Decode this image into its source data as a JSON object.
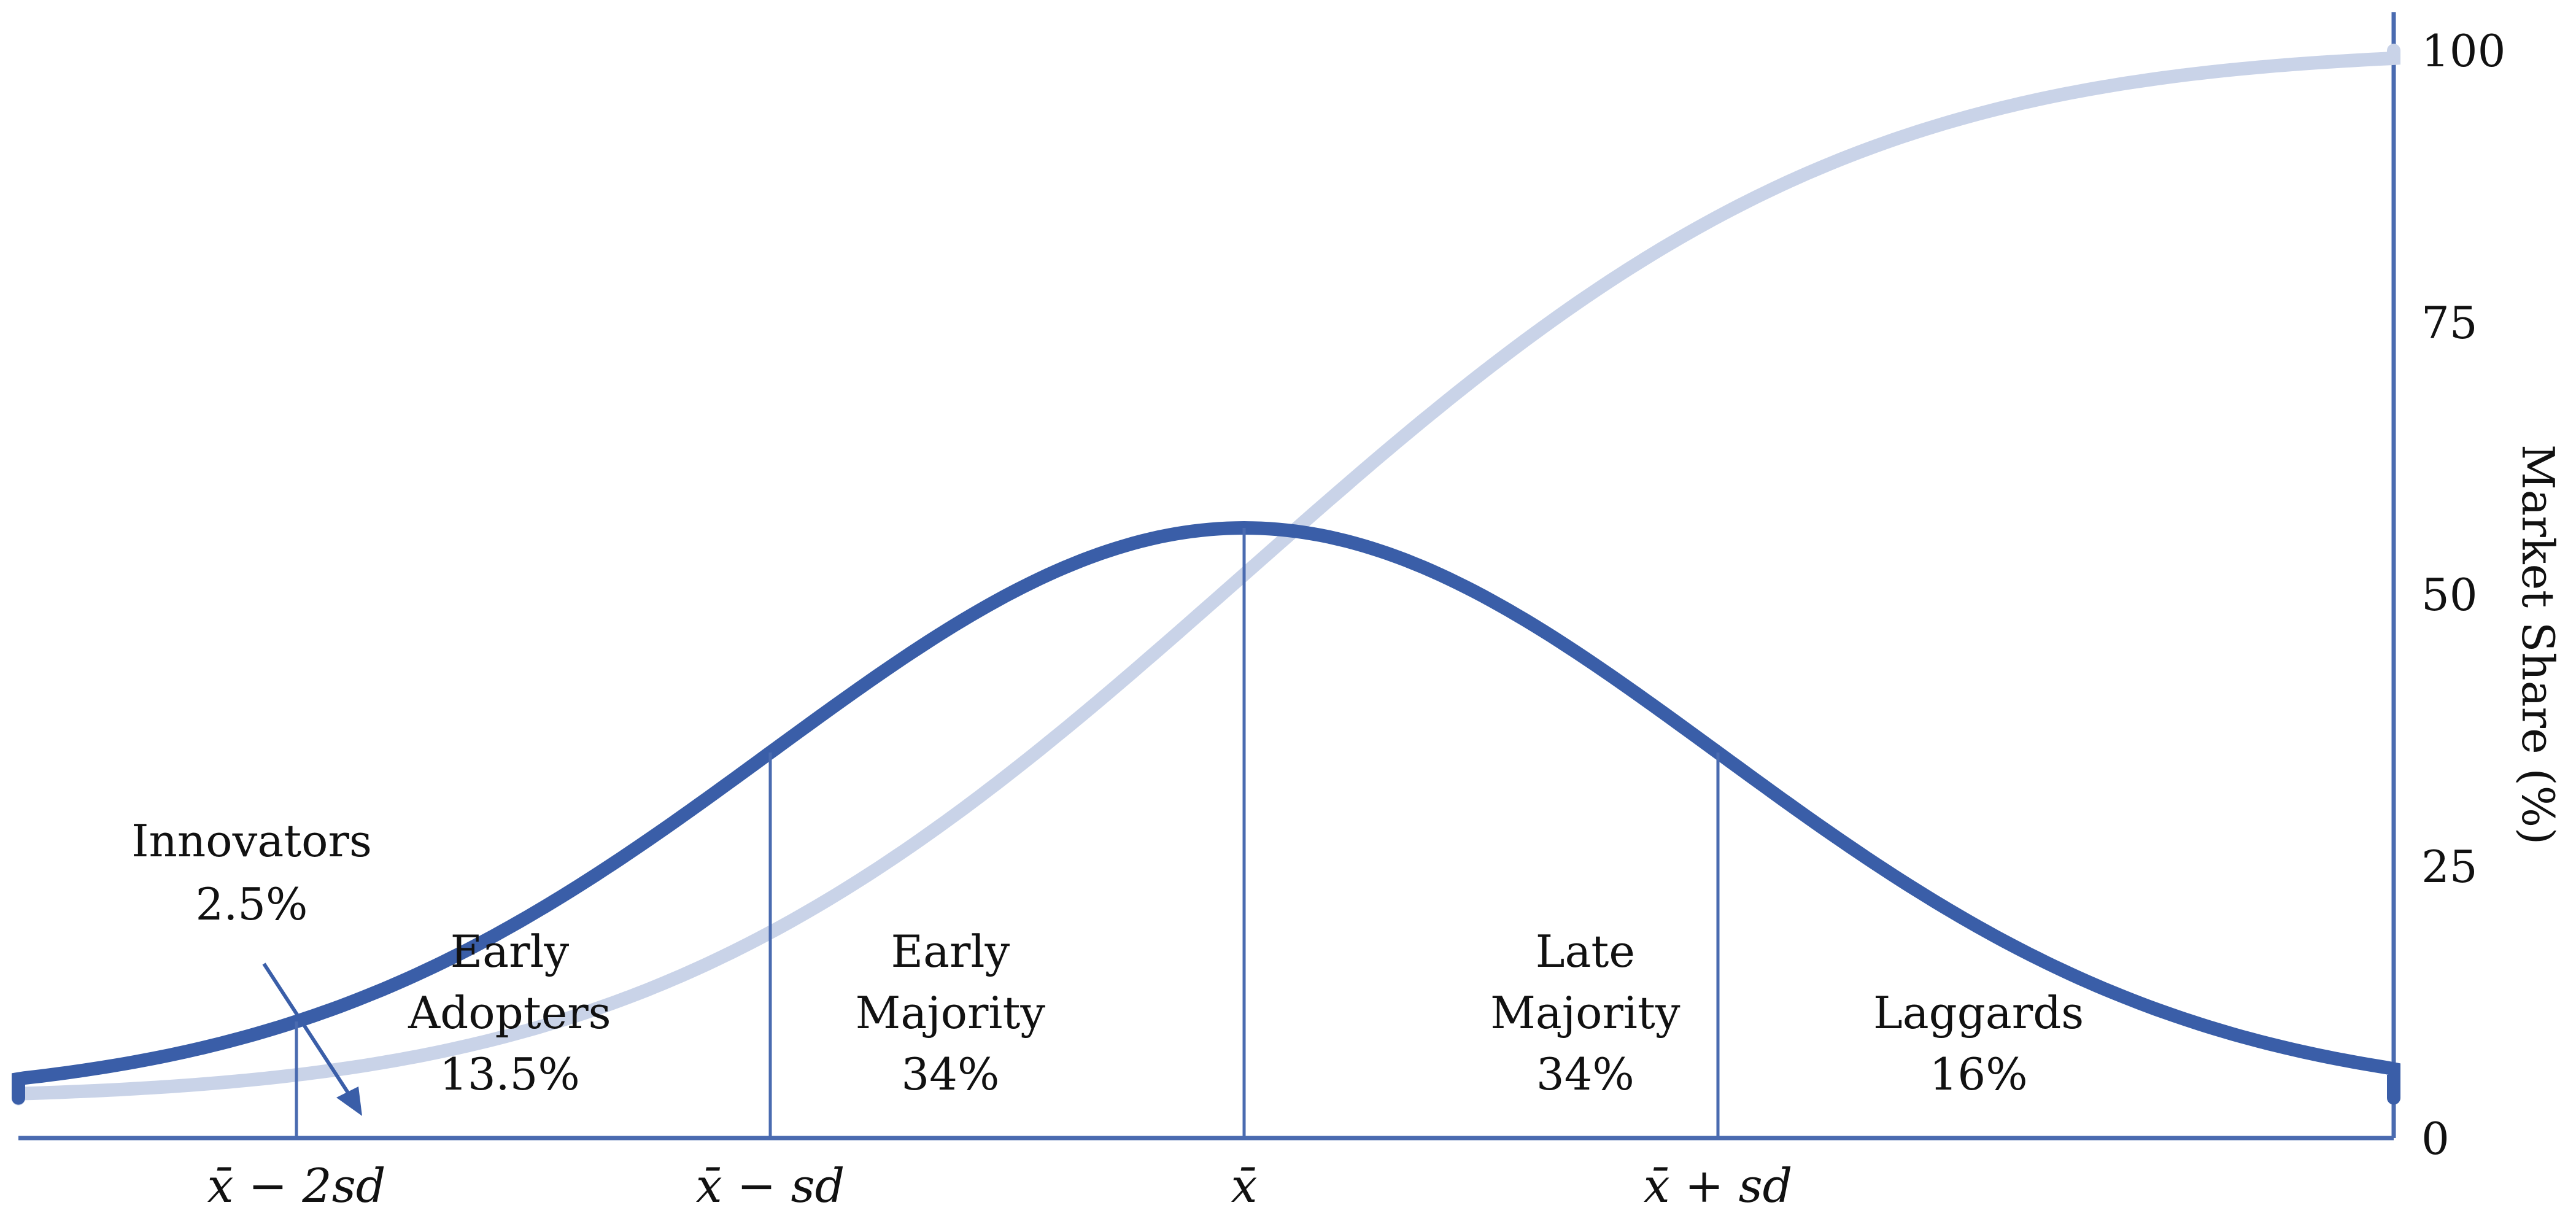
{
  "chart_data": {
    "type": "line",
    "ylabel": "Market Share (%)",
    "ylim": [
      0,
      100
    ],
    "y_ticks": [
      "0",
      "25",
      "50",
      "75",
      "100"
    ],
    "x_markers": [
      {
        "label": "x̄ − 2sd",
        "z": -2
      },
      {
        "label": "x̄ − sd",
        "z": -1
      },
      {
        "label": "x̄",
        "z": 0
      },
      {
        "label": "x̄ + sd",
        "z": 1
      }
    ],
    "x_range_sd": [
      -3.6,
      3.6
    ],
    "segments": [
      {
        "lines": [
          "Early",
          "Adopters",
          "13.5%"
        ],
        "z": -1.55
      },
      {
        "lines": [
          "Early",
          "Majority",
          "34%"
        ],
        "z": -0.62
      },
      {
        "lines": [
          "Late",
          "Majority",
          "34%"
        ],
        "z": 0.72
      },
      {
        "lines": [
          "Laggards",
          "16%"
        ],
        "z": 1.55
      }
    ],
    "callout": {
      "lines": [
        "Innovators",
        "2.5%"
      ]
    },
    "series": [
      {
        "kind": "normal-density",
        "color": "#3a5ea8"
      },
      {
        "kind": "cumulative",
        "color": "#c9d3e8"
      }
    ],
    "colors": {
      "axis": "#4a6bb0",
      "bell": "#3a5ea8",
      "cumulative": "#c9d3e8"
    }
  }
}
